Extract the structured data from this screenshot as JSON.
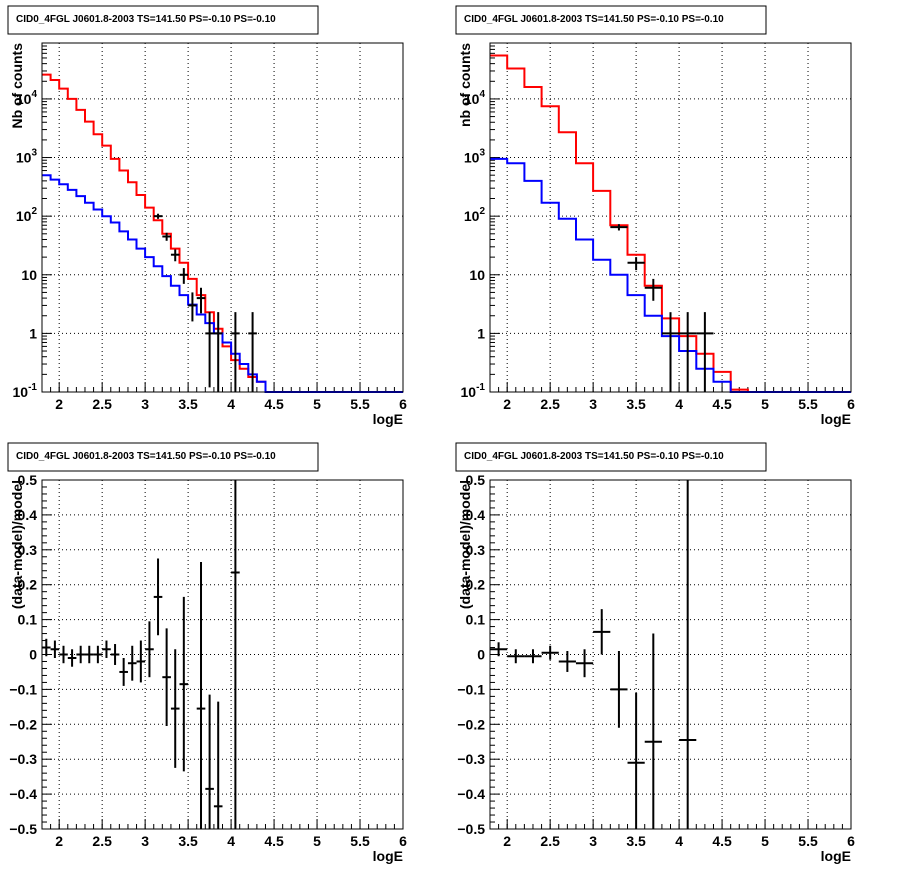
{
  "colors": {
    "total_model": "#ff0000",
    "component_model": "#0000ff",
    "data": "#000000"
  },
  "chart_data": [
    {
      "type": "line",
      "title": "CID0_4FGL J0601.8-2003 TS=141.50 PS=-0.10 PS=-0.10",
      "xlabel": "logE",
      "ylabel": "Nb of counts",
      "xlim": [
        1.8,
        6
      ],
      "ylim": [
        0.1,
        90000
      ],
      "yscale": "log",
      "grid": true,
      "x_ticks": [
        "2",
        "2.5",
        "3",
        "3.5",
        "4",
        "4.5",
        "5",
        "5.5",
        "6"
      ],
      "y_ticks": [
        {
          "base": "10",
          "exp": "-1"
        },
        {
          "base": "1",
          "exp": ""
        },
        {
          "base": "10",
          "exp": ""
        },
        {
          "base": "10",
          "exp": "2"
        },
        {
          "base": "10",
          "exp": "3"
        },
        {
          "base": "10",
          "exp": "4"
        }
      ],
      "bin_edges": [
        1.8,
        1.9,
        2.0,
        2.1,
        2.2,
        2.3,
        2.4,
        2.5,
        2.6,
        2.7,
        2.8,
        2.9,
        3.0,
        3.1,
        3.2,
        3.3,
        3.4,
        3.5,
        3.6,
        3.7,
        3.8,
        3.9,
        4.0,
        4.1,
        4.2,
        4.3,
        4.4,
        4.5,
        4.6,
        4.7,
        4.8,
        4.9,
        5.0,
        5.1,
        5.2,
        5.3,
        5.4,
        5.5,
        5.6,
        5.7,
        5.8,
        5.9,
        6.0
      ],
      "series": [
        {
          "values": [
            26000,
            21000,
            15000,
            10000,
            6500,
            4100,
            2500,
            1600,
            950,
            600,
            380,
            230,
            140,
            85,
            50,
            28,
            16,
            8.5,
            4.5,
            2.3,
            1.2,
            0.6,
            0.35,
            0.25,
            0.18,
            0.15,
            0.1,
            0.1,
            0.1,
            0.1,
            0.1,
            0.1,
            0.1,
            0.1,
            0.1,
            0.1,
            0.1,
            0.1,
            0.1,
            0.1,
            0.1,
            0.1
          ]
        },
        {
          "values": [
            500,
            420,
            350,
            280,
            220,
            170,
            130,
            100,
            78,
            55,
            40,
            28,
            20,
            14,
            9.5,
            6.5,
            4.5,
            3.1,
            2.1,
            1.5,
            1.0,
            0.7,
            0.45,
            0.3,
            0.2,
            0.15,
            0.1,
            0.1,
            0.1,
            0.1,
            0.1,
            0.1,
            0.1,
            0.1,
            0.1,
            0.1,
            0.1,
            0.1,
            0.1,
            0.1,
            0.1,
            0.1
          ]
        }
      ],
      "data_points": [
        {
          "x": 3.15,
          "y": 100,
          "ylo": 90,
          "yhi": 110
        },
        {
          "x": 3.25,
          "y": 45,
          "ylo": 38,
          "yhi": 52
        },
        {
          "x": 3.35,
          "y": 22,
          "ylo": 17,
          "yhi": 27
        },
        {
          "x": 3.45,
          "y": 10,
          "ylo": 7,
          "yhi": 13
        },
        {
          "x": 3.55,
          "y": 3,
          "ylo": 1.6,
          "yhi": 5
        },
        {
          "x": 3.65,
          "y": 4,
          "ylo": 2.2,
          "yhi": 6
        },
        {
          "x": 3.75,
          "y": 1,
          "ylo": 0.12,
          "yhi": 2.3
        },
        {
          "x": 3.85,
          "y": 1,
          "ylo": 0.1,
          "yhi": 2.3
        },
        {
          "x": 4.05,
          "y": 1,
          "ylo": 0.1,
          "yhi": 2.3
        },
        {
          "x": 4.25,
          "y": 1,
          "ylo": 0.1,
          "yhi": 2.3
        }
      ]
    },
    {
      "type": "line",
      "title": "CID0_4FGL J0601.8-2003 TS=141.50 PS=-0.10 PS=-0.10",
      "xlabel": "logE",
      "ylabel": "nb of counts",
      "xlim": [
        1.8,
        6
      ],
      "ylim": [
        0.1,
        90000
      ],
      "yscale": "log",
      "grid": true,
      "x_ticks": [
        "2",
        "2.5",
        "3",
        "3.5",
        "4",
        "4.5",
        "5",
        "5.5",
        "6"
      ],
      "y_ticks": [
        {
          "base": "10",
          "exp": "-1"
        },
        {
          "base": "1",
          "exp": ""
        },
        {
          "base": "10",
          "exp": ""
        },
        {
          "base": "10",
          "exp": "2"
        },
        {
          "base": "10",
          "exp": "3"
        },
        {
          "base": "10",
          "exp": "4"
        }
      ],
      "bin_edges": [
        1.8,
        2.0,
        2.2,
        2.4,
        2.6,
        2.8,
        3.0,
        3.2,
        3.4,
        3.6,
        3.8,
        4.0,
        4.2,
        4.4,
        4.6,
        4.8,
        5.0,
        5.2,
        5.4,
        5.6,
        5.8,
        6.0
      ],
      "series": [
        {
          "values": [
            55000,
            33000,
            16000,
            7500,
            2700,
            800,
            270,
            70,
            22,
            6.5,
            1.8,
            0.9,
            0.45,
            0.22,
            0.11,
            0.1,
            0.1,
            0.1,
            0.1,
            0.1,
            0.1
          ]
        },
        {
          "values": [
            950,
            800,
            400,
            170,
            90,
            40,
            18,
            10,
            4.5,
            2.0,
            0.9,
            0.5,
            0.25,
            0.15,
            0.1,
            0.1,
            0.1,
            0.1,
            0.1,
            0.1,
            0.1
          ]
        }
      ],
      "data_points": [
        {
          "x": 3.3,
          "y": 65,
          "ylo": 57,
          "yhi": 73
        },
        {
          "x": 3.5,
          "y": 16,
          "ylo": 12,
          "yhi": 20
        },
        {
          "x": 3.7,
          "y": 6,
          "ylo": 3.6,
          "yhi": 8.5
        },
        {
          "x": 3.9,
          "y": 1,
          "ylo": 0.1,
          "yhi": 2.3
        },
        {
          "x": 4.1,
          "y": 1,
          "ylo": 0.1,
          "yhi": 2.3
        },
        {
          "x": 4.3,
          "y": 1,
          "ylo": 0.1,
          "yhi": 2.3
        }
      ]
    },
    {
      "type": "scatter",
      "title": "CID0_4FGL J0601.8-2003 TS=141.50 PS=-0.10 PS=-0.10",
      "xlabel": "logE",
      "ylabel": "(data-model)/model",
      "xlim": [
        1.8,
        6
      ],
      "ylim": [
        -0.5,
        0.5
      ],
      "grid": true,
      "x_ticks": [
        "2",
        "2.5",
        "3",
        "3.5",
        "4",
        "4.5",
        "5",
        "5.5",
        "6"
      ],
      "y_ticks": [
        "−0.5",
        "−0.4",
        "−0.3",
        "−0.2",
        "−0.1",
        "0",
        "0.1",
        "0.2",
        "0.3",
        "0.4",
        "0.5"
      ],
      "data_points": [
        {
          "x": 1.85,
          "y": 0.02,
          "err": 0.025
        },
        {
          "x": 1.95,
          "y": 0.015,
          "err": 0.025
        },
        {
          "x": 2.05,
          "y": 0.0,
          "err": 0.025
        },
        {
          "x": 2.15,
          "y": -0.01,
          "err": 0.025
        },
        {
          "x": 2.25,
          "y": 0.0,
          "err": 0.025
        },
        {
          "x": 2.35,
          "y": 0.0,
          "err": 0.025
        },
        {
          "x": 2.45,
          "y": 0.0,
          "err": 0.025
        },
        {
          "x": 2.55,
          "y": 0.015,
          "err": 0.025
        },
        {
          "x": 2.65,
          "y": 0.0,
          "err": 0.03
        },
        {
          "x": 2.75,
          "y": -0.05,
          "err": 0.04
        },
        {
          "x": 2.85,
          "y": -0.025,
          "err": 0.05
        },
        {
          "x": 2.95,
          "y": -0.02,
          "err": 0.06
        },
        {
          "x": 3.05,
          "y": 0.015,
          "err": 0.08
        },
        {
          "x": 3.15,
          "y": 0.165,
          "err": 0.11
        },
        {
          "x": 3.25,
          "y": -0.065,
          "err": 0.14
        },
        {
          "x": 3.35,
          "y": -0.155,
          "err": 0.17
        },
        {
          "x": 3.45,
          "y": -0.085,
          "err": 0.25
        },
        {
          "x": 3.65,
          "y": -0.155,
          "err": 0.42
        },
        {
          "x": 3.75,
          "y": -0.385,
          "err": 0.27
        },
        {
          "x": 3.85,
          "y": -0.435,
          "err": 0.3
        },
        {
          "x": 4.05,
          "y": 0.235,
          "err": 0.8
        }
      ]
    },
    {
      "type": "scatter",
      "title": "CID0_4FGL J0601.8-2003 TS=141.50 PS=-0.10 PS=-0.10",
      "xlabel": "logE",
      "ylabel": "(data-model)/model",
      "xlim": [
        1.8,
        6
      ],
      "ylim": [
        -0.5,
        0.5
      ],
      "grid": true,
      "x_ticks": [
        "2",
        "2.5",
        "3",
        "3.5",
        "4",
        "4.5",
        "5",
        "5.5",
        "6"
      ],
      "y_ticks": [
        "−0.5",
        "−0.4",
        "−0.3",
        "−0.2",
        "−0.1",
        "0",
        "0.1",
        "0.2",
        "0.3",
        "0.4",
        "0.5"
      ],
      "data_points": [
        {
          "x": 1.9,
          "y": 0.015,
          "err": 0.02
        },
        {
          "x": 2.1,
          "y": -0.005,
          "err": 0.02
        },
        {
          "x": 2.3,
          "y": -0.005,
          "err": 0.02
        },
        {
          "x": 2.5,
          "y": 0.005,
          "err": 0.02
        },
        {
          "x": 2.7,
          "y": -0.02,
          "err": 0.03
        },
        {
          "x": 2.9,
          "y": -0.025,
          "err": 0.04
        },
        {
          "x": 3.1,
          "y": 0.065,
          "err": 0.065
        },
        {
          "x": 3.3,
          "y": -0.1,
          "err": 0.11
        },
        {
          "x": 3.5,
          "y": -0.31,
          "err": 0.2
        },
        {
          "x": 3.7,
          "y": -0.25,
          "err": 0.31
        },
        {
          "x": 4.1,
          "y": -0.245,
          "err": 0.8
        }
      ]
    }
  ]
}
